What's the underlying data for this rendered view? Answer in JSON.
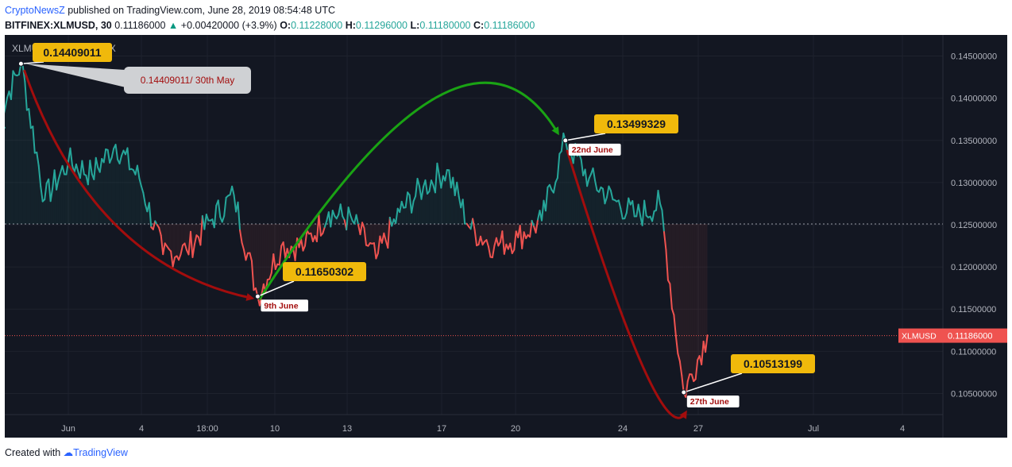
{
  "header": {
    "publisher": "CryptoNewsZ",
    "published_text": " published on TradingView.com, June 28, 2019 08:54:48 UTC",
    "symbol": "BITFINEX:XLMUSD, 30",
    "last": "0.11186000",
    "change": "+0.00420000 (+3.9%)",
    "open_label": "O:",
    "open": "0.11228000",
    "high_label": "H:",
    "high": "0.11296000",
    "low_label": "L:",
    "low": "0.11180000",
    "close_label": "C:",
    "close": "0.11186000"
  },
  "legend_text": "XLMUSD, 30, BITFINEX",
  "footer": {
    "created_with": "Created with",
    "brand": "TradingView"
  },
  "colors": {
    "up": "#26a69a",
    "down": "#ef5350",
    "background": "#131722",
    "label_bg": "#f0b90b",
    "green_arrow": "#1aa314",
    "red_arrow": "#a30d0d"
  },
  "chart_data": {
    "type": "line",
    "ylim": [
      0.1025,
      0.1475
    ],
    "y_ticks": [
      "0.10500000",
      "0.11000000",
      "0.11500000",
      "0.12000000",
      "0.12500000",
      "0.13000000",
      "0.13500000",
      "0.14000000",
      "0.14500000"
    ],
    "x_ticks": [
      "Jun",
      "4",
      "18:00",
      "10",
      "13",
      "17",
      "20",
      "24",
      "27",
      "Jul",
      "4"
    ],
    "baseline": 0.1251,
    "current_price": 0.11186,
    "current_label": "XLMUSD",
    "current_value": "0.11186000",
    "series": [
      {
        "x": [
          "May 29",
          "May 30",
          "May 31",
          "Jun 1",
          "Jun 2",
          "Jun 3",
          "Jun 4",
          "Jun 5",
          "Jun 6",
          "Jun 7",
          "Jun 8",
          "Jun 9",
          "Jun 10",
          "Jun 11",
          "Jun 12",
          "Jun 13",
          "Jun 14",
          "Jun 15",
          "Jun 16",
          "Jun 17",
          "Jun 18",
          "Jun 19",
          "Jun 20",
          "Jun 21",
          "Jun 22",
          "Jun 23",
          "Jun 24",
          "Jun 25",
          "Jun 26",
          "Jun 27",
          "Jun 28"
        ],
        "values": [
          0.1375,
          0.1441,
          0.128,
          0.1325,
          0.131,
          0.1345,
          0.1305,
          0.1215,
          0.122,
          0.1255,
          0.1285,
          0.1165,
          0.1225,
          0.1225,
          0.1265,
          0.1255,
          0.121,
          0.1265,
          0.1295,
          0.1315,
          0.1245,
          0.1225,
          0.1235,
          0.1255,
          0.135,
          0.1305,
          0.128,
          0.126,
          0.1275,
          0.105,
          0.1119
        ]
      }
    ],
    "annotations": [
      {
        "value": "0.14409011",
        "note": "0.14409011/ 30th May",
        "x": "May 30",
        "y": 0.14409011
      },
      {
        "value": "0.11650302",
        "date": "9th June",
        "x": "Jun 9",
        "y": 0.11650302
      },
      {
        "value": "0.13499329",
        "date": "22nd June",
        "x": "Jun 22",
        "y": 0.13499329
      },
      {
        "value": "0.10513199",
        "date": "27th June",
        "x": "Jun 27",
        "y": 0.10513199
      }
    ]
  }
}
